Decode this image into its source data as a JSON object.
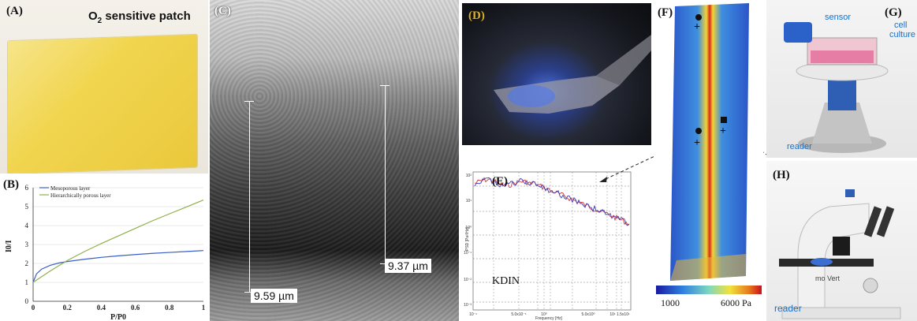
{
  "panels": {
    "a": {
      "label": "(A)",
      "title_main": "O",
      "title_sub": "2",
      "title_rest": " sensitive patch"
    },
    "b": {
      "label": "(B)",
      "legend": [
        "Mesoporous layer",
        "Hierarchically porous layer"
      ],
      "ylabel_main": "I",
      "ylabel_sub": "0",
      "ylabel_rest": "/I",
      "xlabel_main": "P/P",
      "xlabel_sub": "0",
      "yticks": [
        "0",
        "1",
        "2",
        "3",
        "4",
        "5",
        "6"
      ],
      "xticks": [
        "0",
        "0.2",
        "0.4",
        "0.6",
        "0.8",
        "1"
      ]
    },
    "c": {
      "label": "(C)",
      "scale_left": "9.59 µm",
      "scale_right": "9.37 µm"
    },
    "d": {
      "label": "(D)"
    },
    "e": {
      "label": "(E)",
      "annotation": "KDIN",
      "ylabel": "PSD [Pa²/Hz]",
      "xlabel": "Frequency [Hz]",
      "xticks": [
        "10⁻¹",
        "5.0x10⁻¹",
        "10⁰",
        "5.0x10⁰",
        "10¹ 1.5x10¹"
      ],
      "yticks": [
        "10²",
        "10¹",
        "10⁰",
        "10⁻¹",
        "10⁻²",
        "10⁻³"
      ]
    },
    "f": {
      "label": "(F)",
      "colorbar_min": "1000",
      "colorbar_max": "6000 Pa"
    },
    "g": {
      "label": "(G)",
      "sensor": "sensor",
      "cell1": "cell",
      "cell2": "culture",
      "reader": "reader"
    },
    "h": {
      "label": "(H)",
      "brand": "mo Vert",
      "reader": "reader"
    }
  },
  "colors": {
    "mesoporous": "#3a5fc8",
    "hierarchical": "#8fb04a",
    "annotation_blue": "#1d6fc4",
    "psd_red": "#d23a3a",
    "psd_blue": "#3b3bb8"
  },
  "chart_data": [
    {
      "type": "line",
      "title": "",
      "xlabel": "P/P0",
      "ylabel": "I0/I",
      "xlim": [
        0,
        1
      ],
      "ylim": [
        0,
        6
      ],
      "series": [
        {
          "name": "Mesoporous layer",
          "x": [
            0,
            0.02,
            0.05,
            0.1,
            0.15,
            0.2,
            0.3,
            0.4,
            0.5,
            0.6,
            0.7,
            0.8,
            0.9,
            1.0
          ],
          "y": [
            1.0,
            1.45,
            1.7,
            1.9,
            2.02,
            2.1,
            2.22,
            2.32,
            2.4,
            2.47,
            2.53,
            2.58,
            2.63,
            2.68
          ]
        },
        {
          "name": "Hierarchically porous layer",
          "x": [
            0,
            0.1,
            0.2,
            0.3,
            0.4,
            0.5,
            0.6,
            0.7,
            0.8,
            0.9,
            1.0
          ],
          "y": [
            1.0,
            1.6,
            2.15,
            2.62,
            3.05,
            3.45,
            3.85,
            4.25,
            4.62,
            4.98,
            5.35
          ]
        }
      ],
      "legend": "top-left"
    }
  ]
}
